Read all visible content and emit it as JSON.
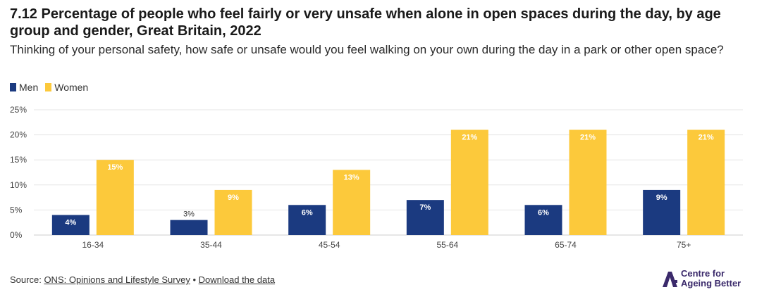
{
  "chart_data": {
    "type": "bar",
    "title": "7.12 Percentage of people who feel fairly or very unsafe when alone in open spaces during the day, by age group and gender, Great Britain, 2022",
    "subtitle": "Thinking of your personal safety, how safe or unsafe would you feel walking on your own during the day in a park or other open space?",
    "categories": [
      "16-34",
      "35-44",
      "45-54",
      "55-64",
      "65-74",
      "75+"
    ],
    "series": [
      {
        "name": "Men",
        "color": "#1b3a80",
        "values": [
          4,
          3,
          6,
          7,
          6,
          9
        ],
        "labels": [
          "4%",
          "3%",
          "6%",
          "7%",
          "6%",
          "9%"
        ]
      },
      {
        "name": "Women",
        "color": "#fcc93b",
        "values": [
          15,
          9,
          13,
          21,
          21,
          21
        ],
        "labels": [
          "15%",
          "9%",
          "13%",
          "21%",
          "21%",
          "21%"
        ]
      }
    ],
    "yticks": [
      "0%",
      "5%",
      "10%",
      "15%",
      "20%",
      "25%"
    ],
    "ylim": [
      0,
      25
    ],
    "xlabel": "",
    "ylabel": "",
    "legend_position": "top-left"
  },
  "source": {
    "prefix": "Source:",
    "link1": "ONS: Opinions and Lifestyle Survey",
    "separator": "•",
    "link2": "Download the data"
  },
  "logo": {
    "line1": "Centre for",
    "line2": "Ageing Better",
    "color": "#3b2a6b"
  }
}
